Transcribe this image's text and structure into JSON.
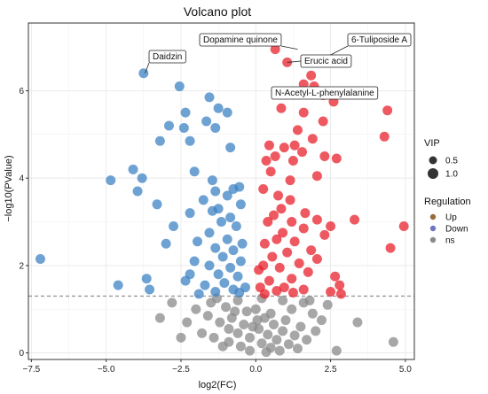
{
  "chart_data": {
    "type": "scatter",
    "title": "Volcano plot",
    "xlabel": "log2(FC)",
    "ylabel": "−log10(PValue)",
    "xlim": [
      -7.6,
      5.3
    ],
    "ylim": [
      -0.15,
      7.55
    ],
    "x_ticks": [
      -7.5,
      -5.0,
      -2.5,
      0.0,
      2.5,
      5.0
    ],
    "x_tick_labels": [
      "−7.5",
      "−5.0",
      "−2.5",
      "0.0",
      "2.5",
      "5.0"
    ],
    "y_ticks": [
      0,
      2,
      4,
      6
    ],
    "y_tick_labels": [
      "0",
      "2",
      "4",
      "6"
    ],
    "grid": true,
    "threshold_y": 1.3,
    "colors": {
      "Up": "#e8222c",
      "Down": "#3e83c4",
      "ns": "#8a8a8a"
    },
    "legend": {
      "placement": "right",
      "vip_title": "VIP",
      "vip_labels": [
        "0.5",
        "1.0"
      ],
      "regulation_title": "Regulation",
      "regulation_labels": [
        "Up",
        "Down",
        "ns"
      ]
    },
    "annotations": [
      {
        "label": "Dopamine quinone",
        "x": 1.4,
        "y": 6.95
      },
      {
        "label": "6-Tuliposide A",
        "x": 2.3,
        "y": 6.75
      },
      {
        "label": "Daidzin",
        "x": -3.7,
        "y": 6.4
      },
      {
        "label": "Erucic acid",
        "x": 1.05,
        "y": 6.65
      },
      {
        "label": "N-Acetyl-L-phenylalanine",
        "x": 1.95,
        "y": 6.1
      }
    ],
    "series": [
      {
        "name": "Up",
        "points": [
          [
            0.65,
            6.95
          ],
          [
            1.05,
            6.65
          ],
          [
            1.85,
            6.35
          ],
          [
            1.6,
            6.15
          ],
          [
            1.95,
            6.1
          ],
          [
            2.25,
            5.9
          ],
          [
            2.6,
            5.75
          ],
          [
            0.85,
            5.6
          ],
          [
            1.6,
            5.5
          ],
          [
            4.4,
            5.55
          ],
          [
            2.25,
            5.3
          ],
          [
            1.4,
            5.1
          ],
          [
            4.3,
            4.95
          ],
          [
            1.9,
            4.9
          ],
          [
            1.3,
            4.75
          ],
          [
            0.45,
            4.75
          ],
          [
            0.95,
            4.7
          ],
          [
            1.55,
            4.6
          ],
          [
            0.65,
            4.5
          ],
          [
            2.3,
            4.5
          ],
          [
            0.35,
            4.4
          ],
          [
            2.7,
            4.45
          ],
          [
            1.25,
            4.4
          ],
          [
            0.5,
            4.15
          ],
          [
            2.05,
            4.05
          ],
          [
            1.15,
            3.95
          ],
          [
            0.25,
            3.75
          ],
          [
            0.75,
            3.6
          ],
          [
            1.15,
            3.5
          ],
          [
            0.85,
            3.3
          ],
          [
            1.65,
            3.2
          ],
          [
            0.6,
            3.15
          ],
          [
            2.05,
            3.05
          ],
          [
            1.2,
            3.0
          ],
          [
            0.4,
            3.0
          ],
          [
            1.6,
            2.85
          ],
          [
            0.9,
            2.75
          ],
          [
            2.3,
            2.7
          ],
          [
            0.7,
            2.6
          ],
          [
            1.3,
            2.55
          ],
          [
            0.3,
            2.5
          ],
          [
            1.85,
            2.35
          ],
          [
            1.05,
            2.3
          ],
          [
            0.55,
            2.2
          ],
          [
            2.05,
            2.15
          ],
          [
            1.45,
            2.05
          ],
          [
            0.25,
            2.0
          ],
          [
            0.8,
            1.95
          ],
          [
            1.75,
            1.85
          ],
          [
            2.65,
            1.75
          ],
          [
            1.2,
            1.7
          ],
          [
            0.45,
            1.65
          ],
          [
            2.8,
            1.55
          ],
          [
            0.95,
            1.5
          ],
          [
            0.15,
            1.5
          ],
          [
            1.6,
            1.45
          ],
          [
            2.5,
            1.4
          ],
          [
            0.7,
            1.42
          ],
          [
            2.85,
            1.35
          ],
          [
            0.3,
            1.35
          ],
          [
            3.3,
            3.05
          ],
          [
            2.5,
            2.9
          ],
          [
            4.95,
            2.9
          ],
          [
            4.5,
            2.4
          ],
          [
            0.1,
            1.9
          ],
          [
            1.25,
            1.38
          ]
        ]
      },
      {
        "name": "Down",
        "points": [
          [
            -3.75,
            6.4
          ],
          [
            -2.55,
            6.1
          ],
          [
            -1.55,
            5.85
          ],
          [
            -1.25,
            5.6
          ],
          [
            -2.35,
            5.5
          ],
          [
            -0.95,
            5.5
          ],
          [
            -1.65,
            5.3
          ],
          [
            -2.9,
            5.2
          ],
          [
            -1.35,
            5.15
          ],
          [
            -2.4,
            5.15
          ],
          [
            -3.2,
            4.85
          ],
          [
            -2.2,
            4.85
          ],
          [
            -0.85,
            4.7
          ],
          [
            -4.1,
            4.2
          ],
          [
            -2.05,
            4.15
          ],
          [
            -3.8,
            4.0
          ],
          [
            -4.85,
            3.95
          ],
          [
            -1.45,
            3.95
          ],
          [
            -0.55,
            3.8
          ],
          [
            -0.75,
            3.75
          ],
          [
            -1.35,
            3.7
          ],
          [
            -3.95,
            3.7
          ],
          [
            -0.95,
            3.6
          ],
          [
            -1.75,
            3.5
          ],
          [
            -3.3,
            3.4
          ],
          [
            -0.5,
            3.4
          ],
          [
            -1.25,
            3.3
          ],
          [
            -1.45,
            3.25
          ],
          [
            -2.2,
            3.2
          ],
          [
            -0.85,
            3.1
          ],
          [
            -1.15,
            3.0
          ],
          [
            -2.75,
            2.9
          ],
          [
            -0.65,
            2.9
          ],
          [
            -1.55,
            2.75
          ],
          [
            -0.95,
            2.6
          ],
          [
            -1.95,
            2.55
          ],
          [
            -3.0,
            2.5
          ],
          [
            -0.45,
            2.5
          ],
          [
            -1.35,
            2.4
          ],
          [
            -0.75,
            2.35
          ],
          [
            -1.1,
            2.2
          ],
          [
            -2.05,
            2.1
          ],
          [
            -0.5,
            2.1
          ],
          [
            -7.2,
            2.15
          ],
          [
            -1.55,
            2.0
          ],
          [
            -0.85,
            1.95
          ],
          [
            -2.2,
            1.8
          ],
          [
            -1.25,
            1.8
          ],
          [
            -0.6,
            1.75
          ],
          [
            -3.65,
            1.7
          ],
          [
            -2.35,
            1.65
          ],
          [
            -1.05,
            1.6
          ],
          [
            -4.6,
            1.55
          ],
          [
            -1.7,
            1.55
          ],
          [
            -0.35,
            1.5
          ],
          [
            -3.55,
            1.45
          ],
          [
            -0.75,
            1.45
          ],
          [
            -1.35,
            1.4
          ],
          [
            -0.55,
            1.38
          ],
          [
            -1.9,
            1.35
          ]
        ]
      },
      {
        "name": "ns",
        "points": [
          [
            -1.3,
            1.25
          ],
          [
            -0.6,
            1.2
          ],
          [
            0.2,
            1.25
          ],
          [
            0.9,
            1.2
          ],
          [
            1.6,
            1.15
          ],
          [
            2.4,
            1.1
          ],
          [
            -2.0,
            1.0
          ],
          [
            -1.0,
            1.05
          ],
          [
            0.0,
            1.0
          ],
          [
            1.2,
            1.0
          ],
          [
            -0.3,
            0.95
          ],
          [
            0.5,
            0.9
          ],
          [
            1.9,
            0.9
          ],
          [
            -1.6,
            0.85
          ],
          [
            -0.8,
            0.8
          ],
          [
            0.3,
            0.8
          ],
          [
            1.0,
            0.75
          ],
          [
            2.2,
            0.75
          ],
          [
            -2.3,
            0.7
          ],
          [
            -1.2,
            0.7
          ],
          [
            -0.4,
            0.65
          ],
          [
            0.6,
            0.65
          ],
          [
            1.5,
            0.6
          ],
          [
            -0.9,
            0.55
          ],
          [
            0.1,
            0.55
          ],
          [
            0.9,
            0.5
          ],
          [
            2.0,
            0.5
          ],
          [
            -1.8,
            0.45
          ],
          [
            -0.6,
            0.45
          ],
          [
            0.4,
            0.42
          ],
          [
            1.3,
            0.4
          ],
          [
            -1.4,
            0.35
          ],
          [
            -0.2,
            0.35
          ],
          [
            0.7,
            0.3
          ],
          [
            1.7,
            0.3
          ],
          [
            -0.9,
            0.25
          ],
          [
            0.2,
            0.22
          ],
          [
            1.1,
            0.2
          ],
          [
            -2.5,
            0.35
          ],
          [
            -0.5,
            0.15
          ],
          [
            0.5,
            0.12
          ],
          [
            1.4,
            0.1
          ],
          [
            -0.2,
            0.05
          ],
          [
            0.8,
            0.05
          ],
          [
            2.7,
            0.05
          ],
          [
            -0.1,
            0.6
          ],
          [
            0.05,
            0.75
          ],
          [
            -0.7,
            0.95
          ],
          [
            -1.5,
            1.15
          ],
          [
            1.8,
            1.2
          ],
          [
            -2.8,
            1.15
          ],
          [
            -3.2,
            0.8
          ],
          [
            3.4,
            0.7
          ],
          [
            -1.1,
            0.15
          ],
          [
            0.35,
            0.02
          ],
          [
            4.6,
            0.25
          ]
        ]
      }
    ]
  }
}
